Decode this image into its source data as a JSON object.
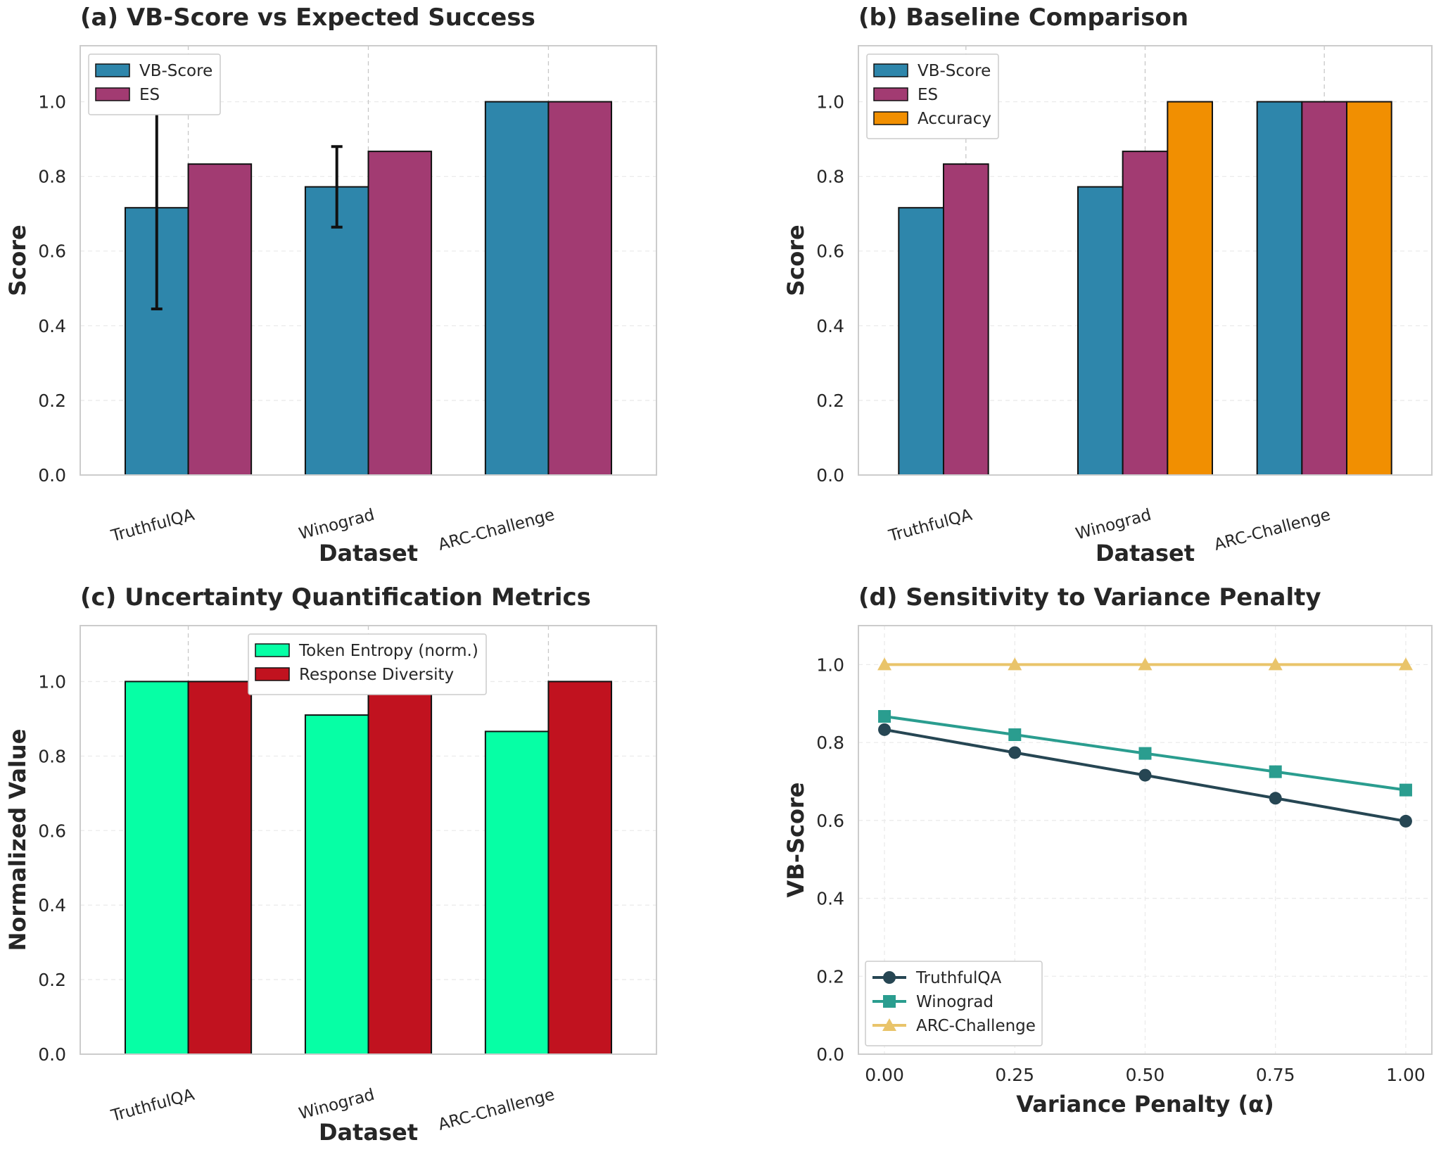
{
  "chart_data": [
    {
      "id": "a",
      "type": "bar",
      "title": "(a) VB-Score vs Expected Success",
      "xlabel": "Dataset",
      "ylabel": "Score",
      "ylim": [
        0,
        1.15
      ],
      "yticks": [
        "0.0",
        "0.2",
        "0.4",
        "0.6",
        "0.8",
        "1.0"
      ],
      "legend_position": "top-left",
      "categories": [
        "TruthfulQA",
        "Winograd",
        "ARC-Challenge"
      ],
      "series": [
        {
          "name": "VB-Score",
          "color": "#2e86ab",
          "values": [
            0.716,
            0.772,
            1.0
          ],
          "errors": [
            0.271,
            0.108,
            0.0
          ]
        },
        {
          "name": "ES",
          "color": "#a23b72",
          "values": [
            0.833,
            0.867,
            1.0
          ]
        }
      ]
    },
    {
      "id": "b",
      "type": "bar",
      "title": "(b) Baseline Comparison",
      "xlabel": "Dataset",
      "ylabel": "Score",
      "ylim": [
        0,
        1.15
      ],
      "yticks": [
        "0.0",
        "0.2",
        "0.4",
        "0.6",
        "0.8",
        "1.0"
      ],
      "legend_position": "top-left",
      "categories": [
        "TruthfulQA",
        "Winograd",
        "ARC-Challenge"
      ],
      "series": [
        {
          "name": "VB-Score",
          "color": "#2e86ab",
          "values": [
            0.716,
            0.772,
            1.0
          ]
        },
        {
          "name": "ES",
          "color": "#a23b72",
          "values": [
            0.833,
            0.867,
            1.0
          ]
        },
        {
          "name": "Accuracy",
          "color": "#f18f01",
          "values": [
            null,
            1.0,
            1.0
          ]
        }
      ]
    },
    {
      "id": "c",
      "type": "bar",
      "title": "(c) Uncertainty Quantification Metrics",
      "xlabel": "Dataset",
      "ylabel": "Normalized Value",
      "ylim": [
        0,
        1.15
      ],
      "yticks": [
        "0.0",
        "0.2",
        "0.4",
        "0.6",
        "0.8",
        "1.0"
      ],
      "legend_position": "top-center",
      "categories": [
        "TruthfulQA",
        "Winograd",
        "ARC-Challenge"
      ],
      "series": [
        {
          "name": "Token Entropy (norm.)",
          "color": "#06ffa5",
          "values": [
            1.0,
            0.91,
            0.866
          ]
        },
        {
          "name": "Response Diversity",
          "color": "#c1121f",
          "values": [
            1.0,
            1.0,
            1.0
          ]
        }
      ]
    },
    {
      "id": "d",
      "type": "line",
      "title": "(d) Sensitivity to Variance Penalty",
      "xlabel": "Variance Penalty (α)",
      "ylabel": "VB-Score",
      "xlim": [
        -0.05,
        1.05
      ],
      "ylim": [
        0,
        1.1
      ],
      "xticks": [
        "0.00",
        "0.25",
        "0.50",
        "0.75",
        "1.00"
      ],
      "yticks": [
        "0.0",
        "0.2",
        "0.4",
        "0.6",
        "0.8",
        "1.0"
      ],
      "legend_position": "bottom-left",
      "x": [
        0.0,
        0.25,
        0.5,
        0.75,
        1.0
      ],
      "series": [
        {
          "name": "TruthfulQA",
          "color": "#264653",
          "marker": "circle",
          "values": [
            0.833,
            0.774,
            0.716,
            0.657,
            0.598
          ]
        },
        {
          "name": "Winograd",
          "color": "#2a9d8f",
          "marker": "square",
          "values": [
            0.867,
            0.82,
            0.772,
            0.725,
            0.678
          ]
        },
        {
          "name": "ARC-Challenge",
          "color": "#e9c46a",
          "marker": "triangle",
          "values": [
            1.0,
            1.0,
            1.0,
            1.0,
            1.0
          ]
        }
      ]
    }
  ]
}
